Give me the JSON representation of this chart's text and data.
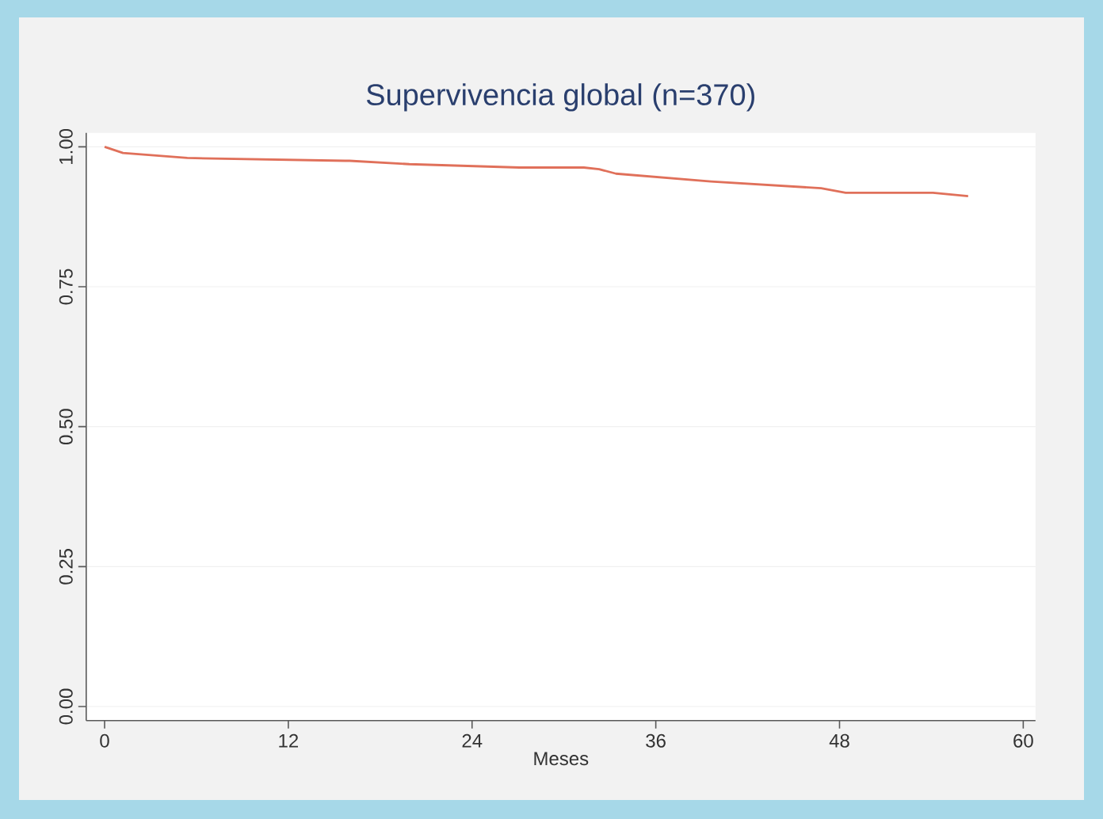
{
  "chart_data": {
    "type": "line",
    "title": "Supervivencia global (n=370)",
    "xlabel": "Meses",
    "x": [
      0,
      1.2,
      5.4,
      15.7,
      16.0,
      19.9,
      27.1,
      31.3,
      32.3,
      33.4,
      39.6,
      46.8,
      48.4,
      54.1,
      56.4
    ],
    "values": [
      1.0,
      0.989,
      0.98,
      0.975,
      0.975,
      0.969,
      0.963,
      0.963,
      0.96,
      0.952,
      0.938,
      0.926,
      0.918,
      0.918,
      0.912
    ],
    "color": "#e0705a",
    "xlim": [
      -1.2,
      60.8
    ],
    "ylim": [
      -0.025,
      1.025
    ],
    "xticks": [
      0,
      12,
      24,
      36,
      48,
      60
    ],
    "yticks": [
      {
        "value": 0,
        "label": "0.00"
      },
      {
        "value": 0.25,
        "label": "0.25"
      },
      {
        "value": 0.5,
        "label": "0.50"
      },
      {
        "value": 0.75,
        "label": "0.75"
      },
      {
        "value": 1,
        "label": "1.00"
      }
    ],
    "grid": "y"
  }
}
